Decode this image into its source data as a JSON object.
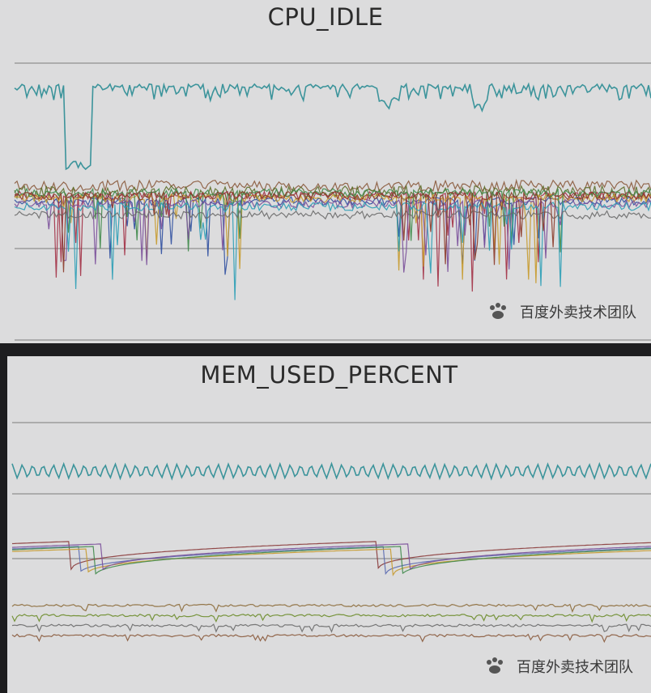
{
  "chart_data": [
    {
      "type": "line",
      "title": "CPU_IDLE",
      "grid": true,
      "legend": "none",
      "series": [
        {
          "color": "#2a8c94",
          "kind": "baseline-high",
          "base": 0.93,
          "amp": 0.06,
          "dips": [
            [
              0.08,
              0.12,
              0.28
            ],
            [
              0.57,
              0.6,
              0.05
            ],
            [
              0.72,
              0.74,
              0.06
            ]
          ]
        },
        {
          "color": "#8a5a3c",
          "kind": "band",
          "base": 0.58,
          "amp": 0.04
        },
        {
          "color": "#5d6e2a",
          "kind": "band",
          "base": 0.56,
          "amp": 0.05
        },
        {
          "color": "#2f4fa0",
          "kind": "spiky",
          "base": 0.52,
          "amp": 0.3
        },
        {
          "color": "#a23045",
          "kind": "spiky",
          "base": 0.54,
          "amp": 0.38
        },
        {
          "color": "#c69a2c",
          "kind": "spiky",
          "base": 0.53,
          "amp": 0.34
        },
        {
          "color": "#3f8a4a",
          "kind": "spiky",
          "base": 0.55,
          "amp": 0.26
        },
        {
          "color": "#7a4f9a",
          "kind": "spiky",
          "base": 0.51,
          "amp": 0.28
        },
        {
          "color": "#2c9fb6",
          "kind": "spiky",
          "base": 0.5,
          "amp": 0.36
        },
        {
          "color": "#6b6b6b",
          "kind": "band",
          "base": 0.47,
          "amp": 0.03
        },
        {
          "color": "#8c3b2a",
          "kind": "spiky",
          "base": 0.54,
          "amp": 0.32
        }
      ]
    },
    {
      "type": "line",
      "title": "MEM_USED_PERCENT",
      "grid": true,
      "legend": "none",
      "series": [
        {
          "color": "#2a8c94",
          "kind": "periodic",
          "base": 0.83,
          "amp": 0.06
        },
        {
          "color": "#8a3a3a",
          "kind": "sawtooth",
          "base": 0.52,
          "amp": 0.12
        },
        {
          "color": "#5a6ab0",
          "kind": "sawtooth",
          "base": 0.5,
          "amp": 0.12
        },
        {
          "color": "#c69a2c",
          "kind": "sawtooth",
          "base": 0.49,
          "amp": 0.11
        },
        {
          "color": "#3f8a4a",
          "kind": "sawtooth",
          "base": 0.5,
          "amp": 0.13
        },
        {
          "color": "#7a4f9a",
          "kind": "sawtooth",
          "base": 0.51,
          "amp": 0.12
        },
        {
          "color": "#8c6b3a",
          "kind": "flat",
          "base": 0.27,
          "amp": 0.01
        },
        {
          "color": "#6b8c2a",
          "kind": "flat",
          "base": 0.23,
          "amp": 0.01
        },
        {
          "color": "#6b6b6b",
          "kind": "flat",
          "base": 0.19,
          "amp": 0.01
        },
        {
          "color": "#8a5a3c",
          "kind": "flat",
          "base": 0.15,
          "amp": 0.01
        }
      ]
    }
  ],
  "watermark": {
    "text": "百度外卖技术团队"
  }
}
